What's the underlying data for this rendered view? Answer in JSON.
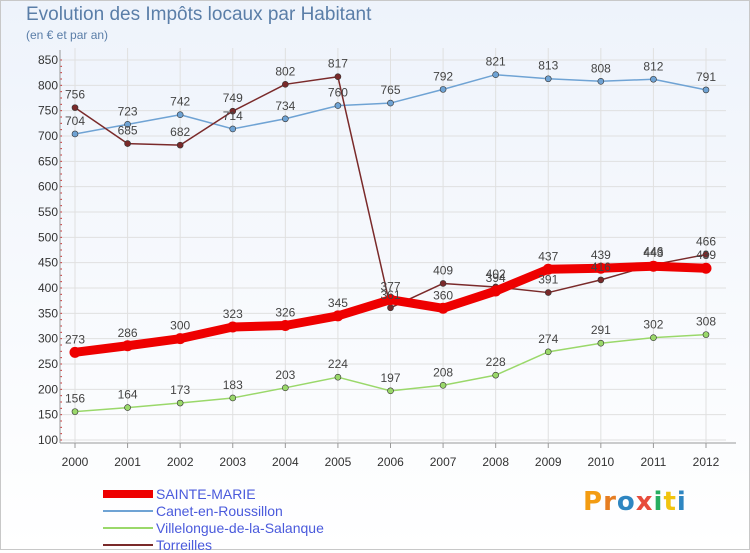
{
  "title": "Evolution des Impôts locaux par Habitant",
  "subtitle": "(en € et par an)",
  "logo": {
    "letters": [
      "P",
      "r",
      "o",
      "x",
      "i",
      "t",
      "i"
    ],
    "colors": [
      "#f39c12",
      "#e67e22",
      "#2e86c1",
      "#e74c3c",
      "#27ae60",
      "#f1c40f",
      "#2e86c1"
    ]
  },
  "chart_data": {
    "type": "line",
    "x": [
      "2000",
      "2001",
      "2002",
      "2003",
      "2004",
      "2005",
      "2006",
      "2007",
      "2008",
      "2009",
      "2010",
      "2011",
      "2012"
    ],
    "ylim": [
      100,
      850
    ],
    "yticks": [
      "100",
      "150",
      "200",
      "250",
      "300",
      "350",
      "400",
      "450",
      "500",
      "550",
      "600",
      "650",
      "700",
      "750",
      "800",
      "850"
    ],
    "grid": true,
    "legend_position": "bottom-left",
    "series": [
      {
        "name": "SAINTE-MARIE",
        "color": "#ee0000",
        "width": 9,
        "values": [
          273,
          286,
          300,
          323,
          326,
          345,
          377,
          360,
          394,
          437,
          439,
          443,
          439
        ]
      },
      {
        "name": "Canet-en-Roussillon",
        "color": "#6fa3d4",
        "width": 1.5,
        "values": [
          704,
          723,
          742,
          714,
          734,
          760,
          765,
          792,
          821,
          813,
          808,
          812,
          791
        ]
      },
      {
        "name": "Villelongue-de-la-Salanque",
        "color": "#9ad86a",
        "width": 1.5,
        "values": [
          156,
          164,
          173,
          183,
          203,
          224,
          197,
          208,
          228,
          274,
          291,
          302,
          308
        ]
      },
      {
        "name": "Torreilles",
        "color": "#7a2a2a",
        "width": 1.5,
        "values": [
          756,
          685,
          682,
          749,
          802,
          817,
          361,
          409,
          402,
          391,
          416,
          446,
          466
        ]
      }
    ]
  }
}
